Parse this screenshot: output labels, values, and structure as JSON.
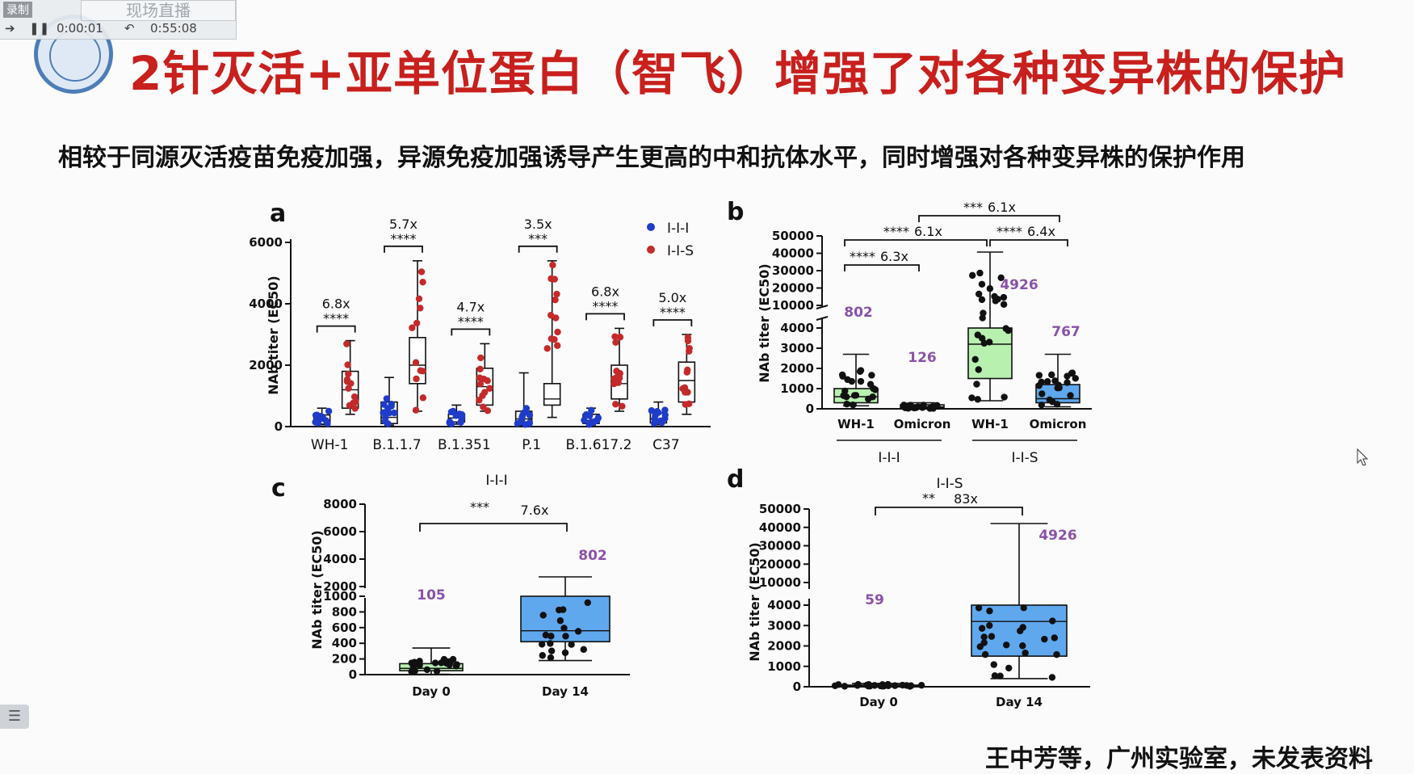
{
  "recorder": {
    "label": "录制",
    "tab_label": "现场直播",
    "elapsed": "0:00:01",
    "total": "0:55:08"
  },
  "slide": {
    "title": "2针灭活+亚单位蛋白（智飞）增强了对各种变异株的保护",
    "subtitle": "相较于同源灭活疫苗免疫加强，异源免疫加强诱导产生更高的中和抗体水平，同时增强对各种变异株的保护作用",
    "footer": "王中芳等，广州实验室，未发表资料"
  },
  "colors": {
    "title": "#c8201d",
    "iii": "#1f3bc9",
    "iis": "#c52a2a",
    "purple_label": "#8a52a8",
    "box_green": "#b8f0b0",
    "box_blue": "#5fa8ee"
  },
  "chart_data": [
    {
      "panel": "a",
      "type": "box",
      "ylabel": "NAb titer (EC50)",
      "yticks": [
        "0",
        "2000",
        "4000",
        "6000"
      ],
      "ylim": [
        0,
        6000
      ],
      "legend": [
        "I-I-I",
        "I-I-S"
      ],
      "groups": [
        {
          "label": "WH-1",
          "fold": "6.8x",
          "sig": "****",
          "iii": {
            "min": 60,
            "q1": 80,
            "median": 180,
            "q3": 380,
            "max": 600
          },
          "iis": {
            "min": 400,
            "q1": 600,
            "median": 1200,
            "q3": 1800,
            "max": 2800
          }
        },
        {
          "label": "B.1.1.7",
          "fold": "5.7x",
          "sig": "****",
          "iii": {
            "min": 50,
            "q1": 100,
            "median": 300,
            "q3": 800,
            "max": 1600
          },
          "iis": {
            "min": 500,
            "q1": 1400,
            "median": 2000,
            "q3": 2900,
            "max": 5400
          }
        },
        {
          "label": "B.1.351",
          "fold": "4.7x",
          "sig": "****",
          "iii": {
            "min": 80,
            "q1": 150,
            "median": 280,
            "q3": 400,
            "max": 700
          },
          "iis": {
            "min": 500,
            "q1": 700,
            "median": 1300,
            "q3": 1900,
            "max": 2700
          }
        },
        {
          "label": "P.1",
          "fold": "3.5x",
          "sig": "***",
          "iii": {
            "min": 50,
            "q1": 100,
            "median": 250,
            "q3": 500,
            "max": 1750
          },
          "iis": {
            "min": 300,
            "q1": 700,
            "median": 900,
            "q3": 1400,
            "max": 5400
          }
        },
        {
          "label": "B.1.617.2",
          "fold": "6.8x",
          "sig": "****",
          "iii": {
            "min": 50,
            "q1": 100,
            "median": 200,
            "q3": 400,
            "max": 600
          },
          "iis": {
            "min": 500,
            "q1": 900,
            "median": 1400,
            "q3": 2000,
            "max": 3200
          }
        },
        {
          "label": "C37",
          "fold": "5.0x",
          "sig": "****",
          "iii": {
            "min": 60,
            "q1": 120,
            "median": 250,
            "q3": 450,
            "max": 800
          },
          "iis": {
            "min": 400,
            "q1": 800,
            "median": 1500,
            "q3": 2100,
            "max": 3000
          }
        }
      ]
    },
    {
      "panel": "b",
      "type": "box",
      "ylabel": "NAb titer (EC50)",
      "yticks_lower": [
        "0",
        "1000",
        "2000",
        "3000",
        "4000"
      ],
      "yticks_upper": [
        "10000",
        "20000",
        "30000",
        "40000",
        "50000"
      ],
      "categories": [
        "WH-1",
        "Omicron",
        "WH-1",
        "Omicron"
      ],
      "group_labels": [
        "I-I-I",
        "I-I-S"
      ],
      "medians_label": [
        "802",
        "126",
        "4926",
        "767"
      ],
      "comparisons": [
        {
          "sig": "****",
          "fold": "6.3x"
        },
        {
          "sig": "****",
          "fold": "6.1x"
        },
        {
          "sig": "***",
          "fold": "6.1x"
        },
        {
          "sig": "****",
          "fold": "6.4x"
        }
      ]
    },
    {
      "panel": "c",
      "type": "box",
      "title": "I-I-I",
      "ylabel": "NAb titer (EC50)",
      "yticks_lower": [
        "0",
        "200",
        "400",
        "600",
        "800",
        "1000"
      ],
      "yticks_upper": [
        "2000",
        "4000",
        "6000",
        "8000"
      ],
      "categories": [
        "Day 0",
        "Day 14"
      ],
      "values_label": [
        "105",
        "802"
      ],
      "comparison": {
        "sig": "***",
        "fold": "7.6x"
      }
    },
    {
      "panel": "d",
      "type": "box",
      "title": "I-I-S",
      "ylabel": "NAb titer (EC50)",
      "yticks_lower": [
        "0",
        "1000",
        "2000",
        "3000",
        "4000"
      ],
      "yticks_upper": [
        "10000",
        "20000",
        "30000",
        "40000",
        "50000"
      ],
      "categories": [
        "Day 0",
        "Day 14"
      ],
      "values_label": [
        "59",
        "4926"
      ],
      "comparison": {
        "sig": "**",
        "fold": "83x"
      }
    }
  ]
}
